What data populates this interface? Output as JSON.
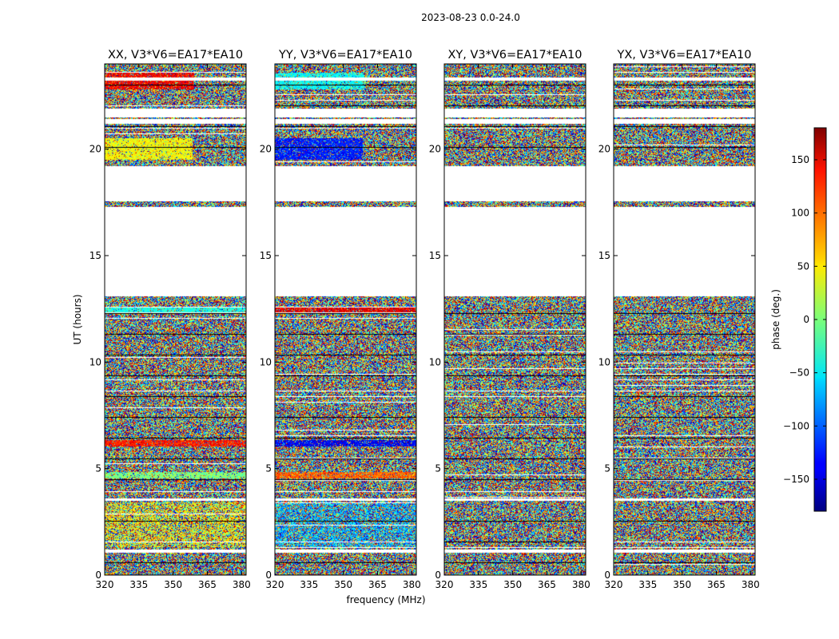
{
  "chart_data": {
    "type": "heatmap",
    "suptitle": "2023-08-23 0.0-24.0",
    "xlabel": "frequency (MHz)",
    "ylabel": "UT (hours)",
    "xlim": [
      320,
      382
    ],
    "ylim": [
      0,
      24
    ],
    "xticks": [
      320,
      335,
      350,
      365,
      380
    ],
    "yticks": [
      0,
      5,
      10,
      15,
      20
    ],
    "colorbar": {
      "label": "phase (deg.)",
      "range": [
        -180,
        180
      ],
      "ticks": [
        150,
        100,
        50,
        0,
        -50,
        -100,
        -150
      ],
      "tick_labels": [
        "150",
        "100",
        "50",
        "0",
        "−50",
        "−100",
        "−150"
      ],
      "colormap": "jet"
    },
    "flagged_gaps_hours": [
      [
        1.05,
        1.2
      ],
      [
        3.5,
        3.6
      ],
      [
        13.1,
        17.3
      ],
      [
        17.55,
        19.2
      ],
      [
        21.2,
        21.4
      ],
      [
        21.5,
        21.9
      ],
      [
        23.2,
        23.35
      ]
    ],
    "coherent_bands_hours": [
      [
        20.0,
        19.6
      ],
      [
        23.0,
        23.6
      ],
      [
        4.8,
        4.6
      ],
      [
        6.3,
        6.1
      ],
      [
        12.5,
        12.3
      ]
    ],
    "panels": [
      {
        "name": "xx-panel",
        "title": "XX, V3*V6=EA17*EA10"
      },
      {
        "name": "yy-panel",
        "title": "YY, V3*V6=EA17*EA10"
      },
      {
        "name": "xy-panel",
        "title": "XY, V3*V6=EA17*EA10"
      },
      {
        "name": "yx-panel",
        "title": "YX, V3*V6=EA17*EA10"
      }
    ]
  }
}
